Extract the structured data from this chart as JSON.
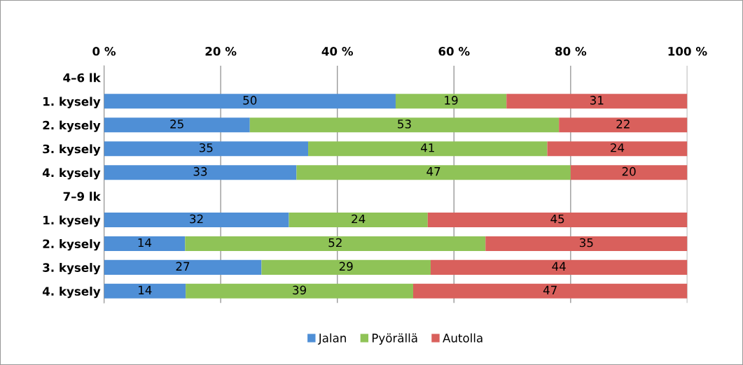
{
  "chart_data": {
    "type": "bar",
    "orientation": "horizontal",
    "stacked": true,
    "categories": [
      "4–6 lk",
      "1. kysely",
      "2. kysely",
      "3. kysely",
      "4. kysely",
      "7–9 lk",
      "1. kysely",
      "2. kysely",
      "3. kysely",
      "4. kysely"
    ],
    "series": [
      {
        "name": "Jalan",
        "color": "#4f8fd6",
        "values": [
          null,
          50,
          25,
          35,
          33,
          null,
          31.7,
          13.9,
          27,
          14
        ],
        "value_labels": [
          null,
          "50",
          "25",
          "35",
          "33",
          null,
          "32",
          "14",
          "27",
          "14"
        ]
      },
      {
        "name": "Pyörällä",
        "color": "#8fc357",
        "values": [
          null,
          19,
          53,
          41,
          47,
          null,
          23.8,
          51.5,
          29,
          39
        ],
        "value_labels": [
          null,
          "19",
          "53",
          "41",
          "47",
          null,
          "24",
          "52",
          "29",
          "39"
        ]
      },
      {
        "name": "Autolla",
        "color": "#d9605c",
        "values": [
          null,
          31,
          22,
          24,
          20,
          null,
          44.5,
          34.6,
          44,
          47
        ],
        "value_labels": [
          null,
          "31",
          "22",
          "24",
          "20",
          null,
          "45",
          "35",
          "44",
          "47"
        ]
      }
    ],
    "xlim": [
      0,
      100
    ],
    "xticks": [
      {
        "value": 0,
        "label": "0 %"
      },
      {
        "value": 20,
        "label": "20 %"
      },
      {
        "value": 40,
        "label": "40 %"
      },
      {
        "value": 60,
        "label": "60 %"
      },
      {
        "value": 80,
        "label": "80 %"
      },
      {
        "value": 100,
        "label": "100 %"
      }
    ],
    "grid": "x",
    "legend": "bottom"
  }
}
